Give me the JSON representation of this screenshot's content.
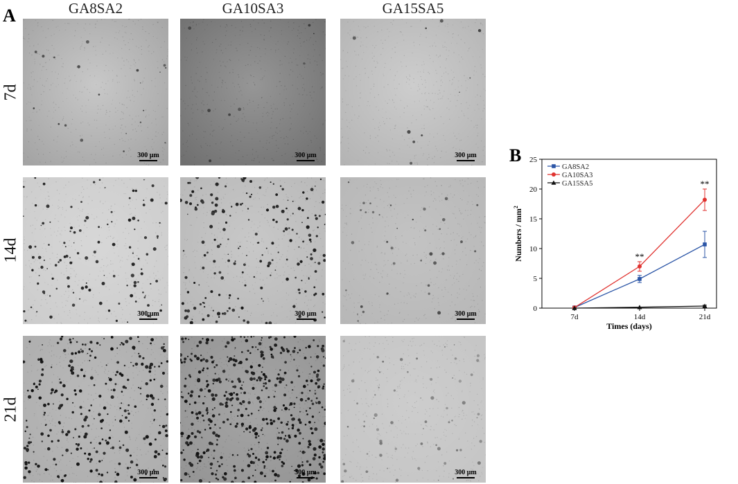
{
  "figure": {
    "panel_a": "A",
    "panel_b": "B",
    "columns": [
      "GA8SA2",
      "GA10SA3",
      "GA15SA5"
    ],
    "rows": [
      "7d",
      "14d",
      "21d"
    ],
    "scale_bar": "300 μm"
  },
  "chart_data": {
    "type": "line",
    "categories": [
      "7d",
      "14d",
      "21d"
    ],
    "series": [
      {
        "name": "GA8SA2",
        "values": [
          0.1,
          4.9,
          10.7
        ],
        "errors": [
          0.1,
          0.6,
          2.2
        ],
        "color": "#2b55a6",
        "marker": "square"
      },
      {
        "name": "GA10SA3",
        "values": [
          0.1,
          7.0,
          18.2
        ],
        "errors": [
          0.1,
          0.8,
          1.8
        ],
        "color": "#e0322f",
        "marker": "circle"
      },
      {
        "name": "GA15SA5",
        "values": [
          0.0,
          0.15,
          0.35
        ],
        "errors": [
          0.0,
          0.05,
          0.15
        ],
        "color": "#111111",
        "marker": "triangle"
      }
    ],
    "annotations": [
      {
        "category": "14d",
        "text": "**"
      },
      {
        "category": "21d",
        "text": "**"
      }
    ],
    "xlabel": "Times (days)",
    "ylabel": "Numbers / mm",
    "ylabel_sup": "2",
    "ylim": [
      0,
      25
    ],
    "yticks": [
      "0",
      "5",
      "10",
      "15",
      "20",
      "25"
    ],
    "legend_position": "top-left"
  }
}
